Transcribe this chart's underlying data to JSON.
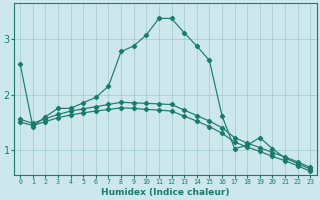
{
  "xlabel": "Humidex (Indice chaleur)",
  "bg_color": "#cce8ec",
  "grid_color": "#a0c8cc",
  "line_color": "#1a7a6e",
  "x_ticks": [
    0,
    1,
    2,
    3,
    4,
    5,
    6,
    7,
    8,
    9,
    10,
    11,
    12,
    13,
    14,
    15,
    16,
    17,
    18,
    19,
    20,
    21,
    22,
    23
  ],
  "y_ticks": [
    1,
    2,
    3
  ],
  "xlim": [
    -0.5,
    23.5
  ],
  "ylim": [
    0.55,
    3.65
  ],
  "line1_x": [
    0,
    1,
    2,
    3,
    4,
    5,
    6,
    7,
    8,
    9,
    10,
    11,
    12,
    13,
    14,
    15,
    16,
    17,
    18,
    19,
    20,
    21,
    22,
    23
  ],
  "line1_y": [
    2.55,
    1.42,
    1.6,
    1.75,
    1.75,
    1.85,
    1.95,
    2.15,
    2.78,
    2.88,
    3.08,
    3.38,
    3.38,
    3.12,
    2.88,
    2.62,
    1.62,
    1.02,
    1.08,
    1.22,
    1.02,
    0.85,
    0.75,
    0.65
  ],
  "line2_full_x": [
    0,
    1,
    2,
    3,
    4,
    5,
    6,
    7,
    8,
    9,
    10,
    11,
    12,
    13,
    14,
    15,
    16,
    17,
    18,
    19,
    20,
    21,
    22,
    23
  ],
  "line2_full_y": [
    1.55,
    1.48,
    1.56,
    1.64,
    1.7,
    1.74,
    1.78,
    1.82,
    1.86,
    1.85,
    1.84,
    1.83,
    1.82,
    1.72,
    1.62,
    1.52,
    1.4,
    1.22,
    1.12,
    1.04,
    0.95,
    0.87,
    0.78,
    0.68
  ],
  "line3_full_y": [
    1.5,
    1.44,
    1.51,
    1.58,
    1.63,
    1.67,
    1.7,
    1.73,
    1.76,
    1.75,
    1.73,
    1.72,
    1.7,
    1.61,
    1.52,
    1.42,
    1.3,
    1.14,
    1.05,
    0.97,
    0.88,
    0.8,
    0.71,
    0.61
  ]
}
